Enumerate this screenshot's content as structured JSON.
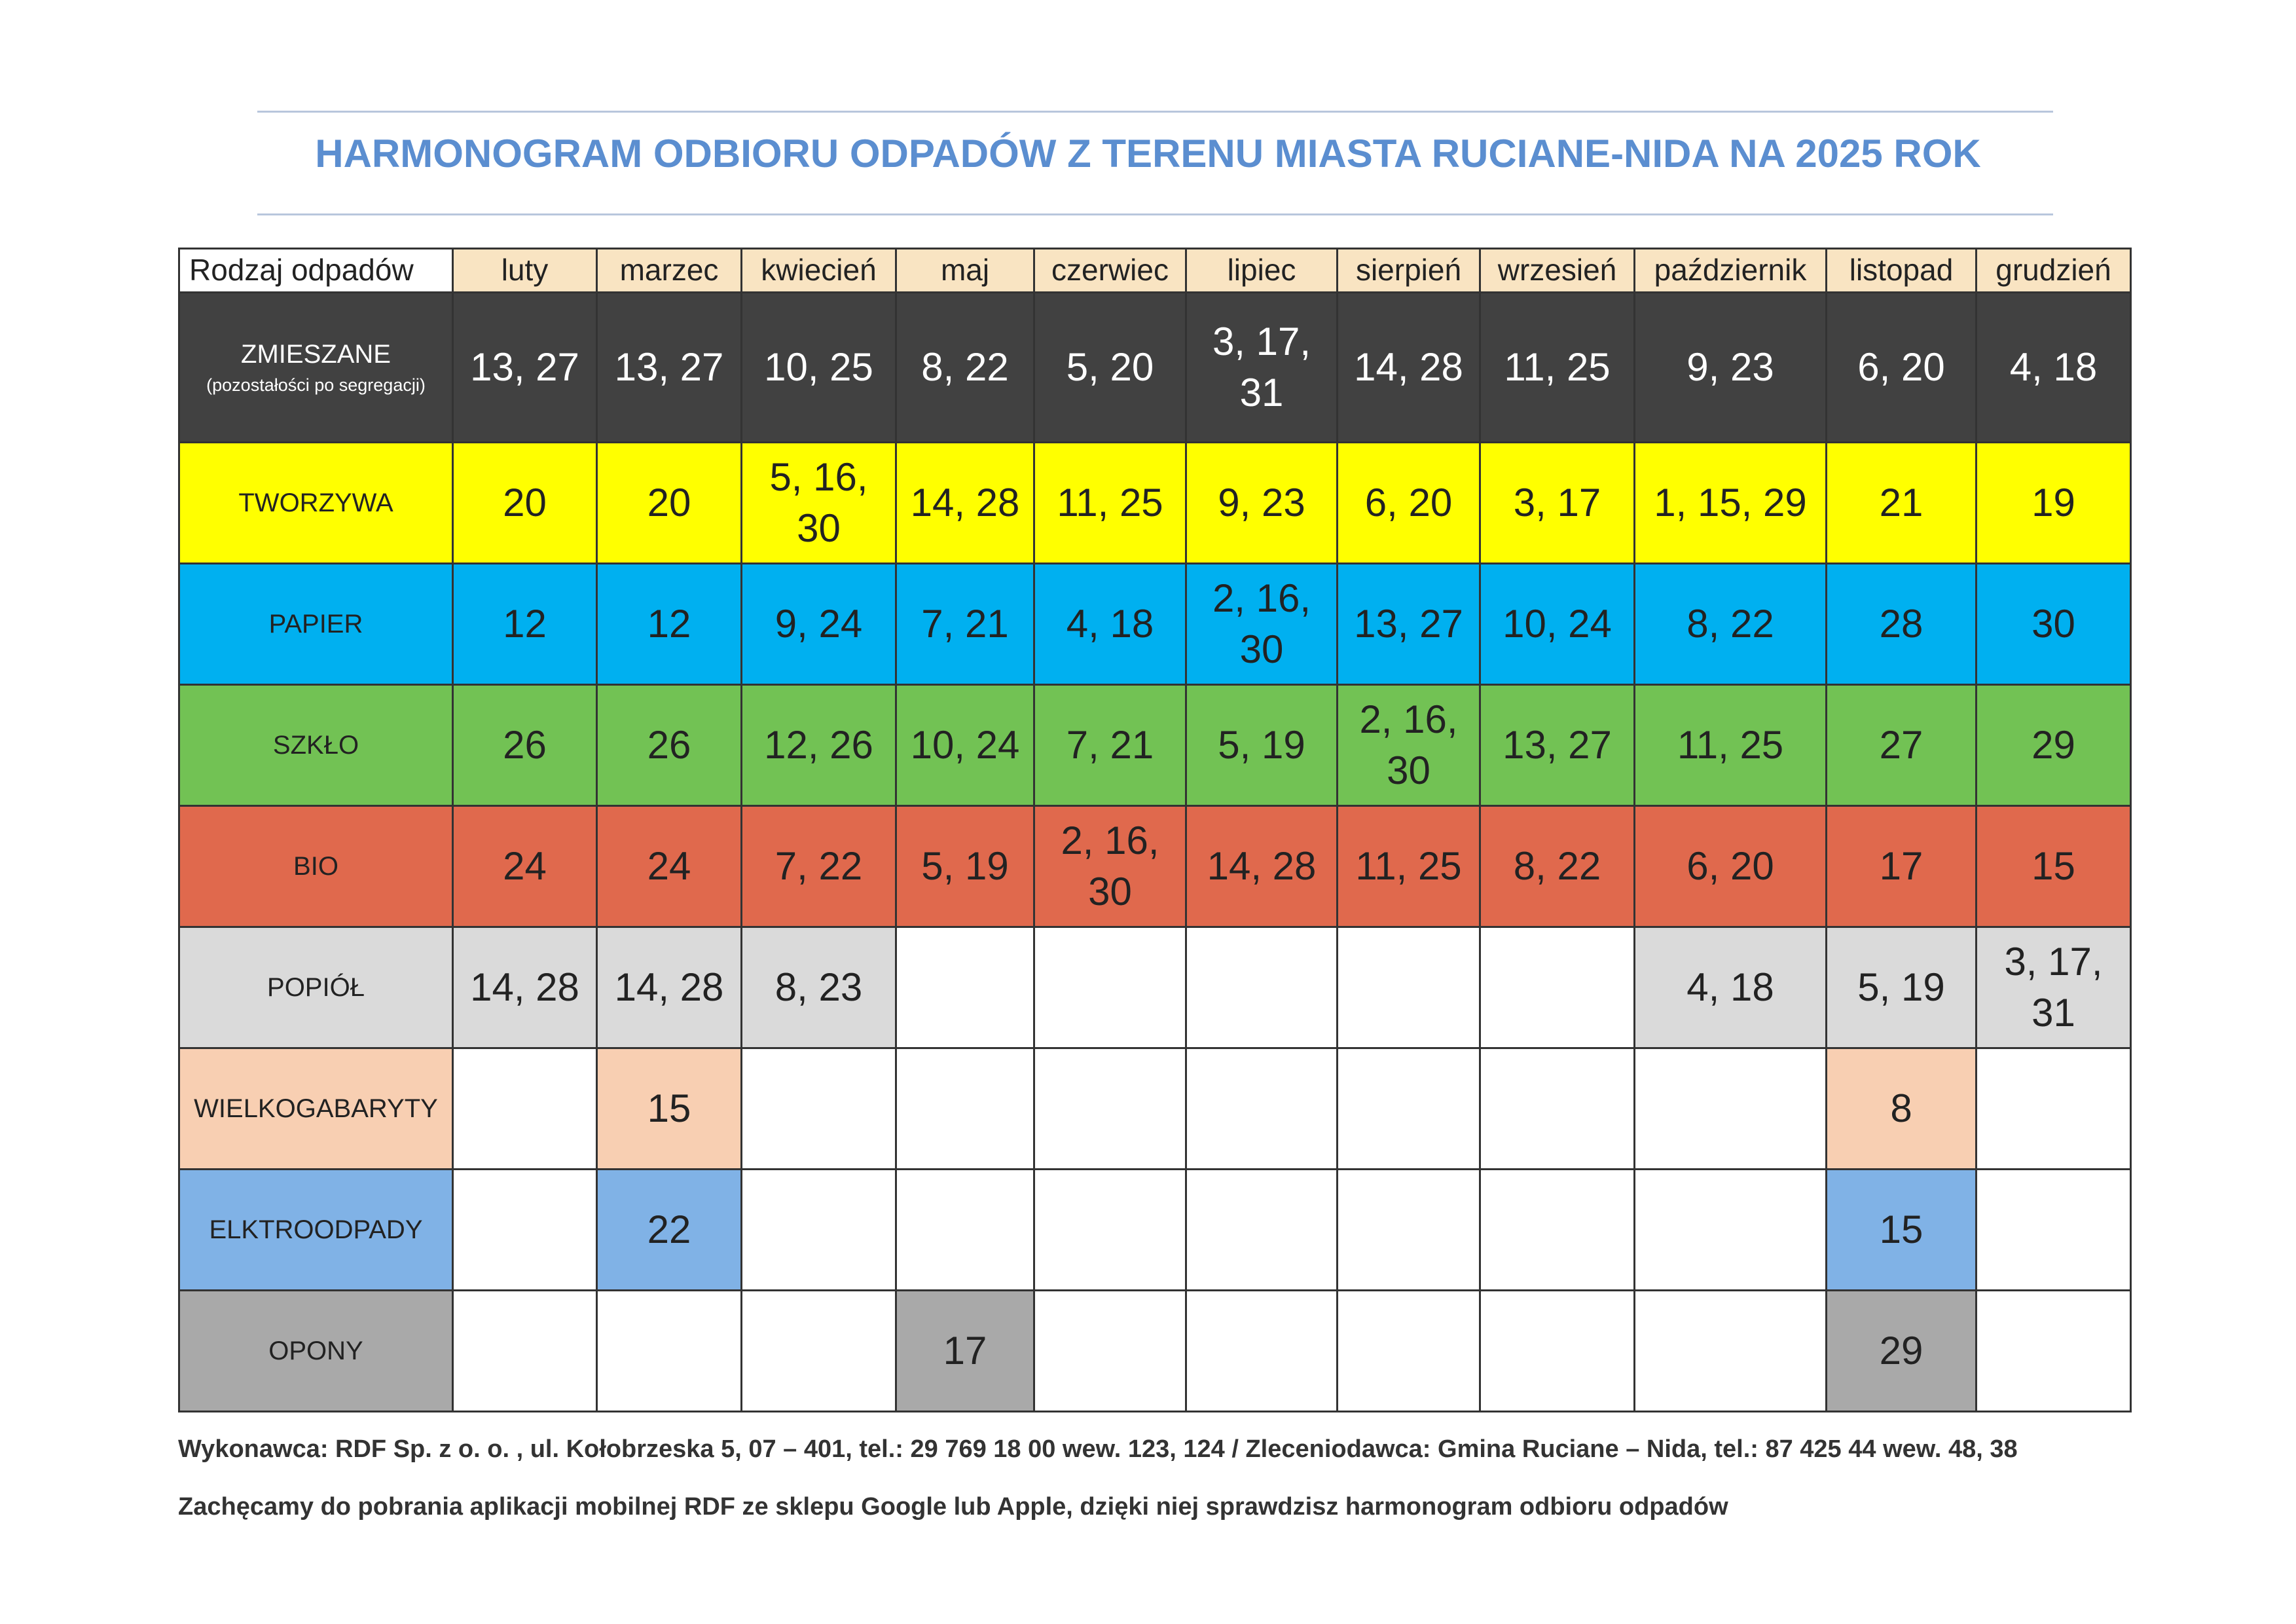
{
  "header": {
    "title": "HARMONOGRAM ODBIORU ODPADÓW Z TERENU MIASTA RUCIANE-NIDA NA 2025 ROK"
  },
  "table": {
    "corner": "Rodzaj odpadów",
    "months": [
      "luty",
      "marzec",
      "kwiecień",
      "maj",
      "czerwiec",
      "lipiec",
      "sierpień",
      "wrzesień",
      "październik",
      "listopad",
      "grudzień"
    ],
    "rows": [
      {
        "label": "ZMIESZANE",
        "sublabel": "(pozostałości po segregacji)",
        "color": "#414141",
        "text_color": "#ffffff",
        "cells": [
          "13, 27",
          "13, 27",
          "10, 25",
          "8, 22",
          "5, 20",
          "3, 17, 31",
          "14, 28",
          "11, 25",
          "9, 23",
          "6, 20",
          "4, 18"
        ]
      },
      {
        "label": "TWORZYWA",
        "color": "#ffff00",
        "text_color": "#222222",
        "cells": [
          "20",
          "20",
          "5, 16, 30",
          "14, 28",
          "11, 25",
          "9, 23",
          "6, 20",
          "3, 17",
          "1, 15, 29",
          "21",
          "19"
        ]
      },
      {
        "label": "PAPIER",
        "color": "#00b0f0",
        "text_color": "#222222",
        "cells": [
          "12",
          "12",
          "9, 24",
          "7, 21",
          "4, 18",
          "2, 16, 30",
          "13, 27",
          "10, 24",
          "8, 22",
          "28",
          "30"
        ]
      },
      {
        "label": "SZKŁO",
        "color": "#72c254",
        "text_color": "#222222",
        "cells": [
          "26",
          "26",
          "12, 26",
          "10, 24",
          "7, 21",
          "5, 19",
          "2, 16, 30",
          "13, 27",
          "11, 25",
          "27",
          "29"
        ]
      },
      {
        "label": "BIO",
        "color": "#e0694d",
        "text_color": "#222222",
        "cells": [
          "24",
          "24",
          "7, 22",
          "5, 19",
          "2, 16, 30",
          "14, 28",
          "11, 25",
          "8, 22",
          "6, 20",
          "17",
          "15"
        ]
      },
      {
        "label": "POPIÓŁ",
        "color": "#dadada",
        "text_color": "#222222",
        "cells": [
          "14, 28",
          "14, 28",
          "8, 23",
          null,
          null,
          null,
          null,
          null,
          "4, 18",
          "5, 19",
          "3, 17, 31"
        ]
      },
      {
        "label": "WIELKOGABARYTY",
        "color": "#f8cfb2",
        "text_color": "#222222",
        "cells": [
          null,
          "15",
          null,
          null,
          null,
          null,
          null,
          null,
          null,
          "8",
          null
        ]
      },
      {
        "label": "ELKTROODPADY",
        "color": "#80b2e6",
        "text_color": "#222222",
        "cells": [
          null,
          "22",
          null,
          null,
          null,
          null,
          null,
          null,
          null,
          "15",
          null
        ]
      },
      {
        "label": "OPONY",
        "color": "#a9a9a9",
        "text_color": "#222222",
        "cells": [
          null,
          null,
          null,
          "17",
          null,
          null,
          null,
          null,
          null,
          "29",
          null
        ]
      }
    ]
  },
  "footer": {
    "contractor": "Wykonawca: RDF Sp. z o. o. , ul. Kołobrzeska 5, 07 – 401, tel.: 29 769 18 00 wew. 123, 124 / Zleceniodawca: Gmina Ruciane – Nida, tel.: 87 425 44 wew. 48, 38",
    "app_note": "Zachęcamy do pobrania aplikacji mobilnej RDF ze sklepu Google lub Apple, dzięki niej sprawdzisz harmonogram odbioru odpadów"
  }
}
